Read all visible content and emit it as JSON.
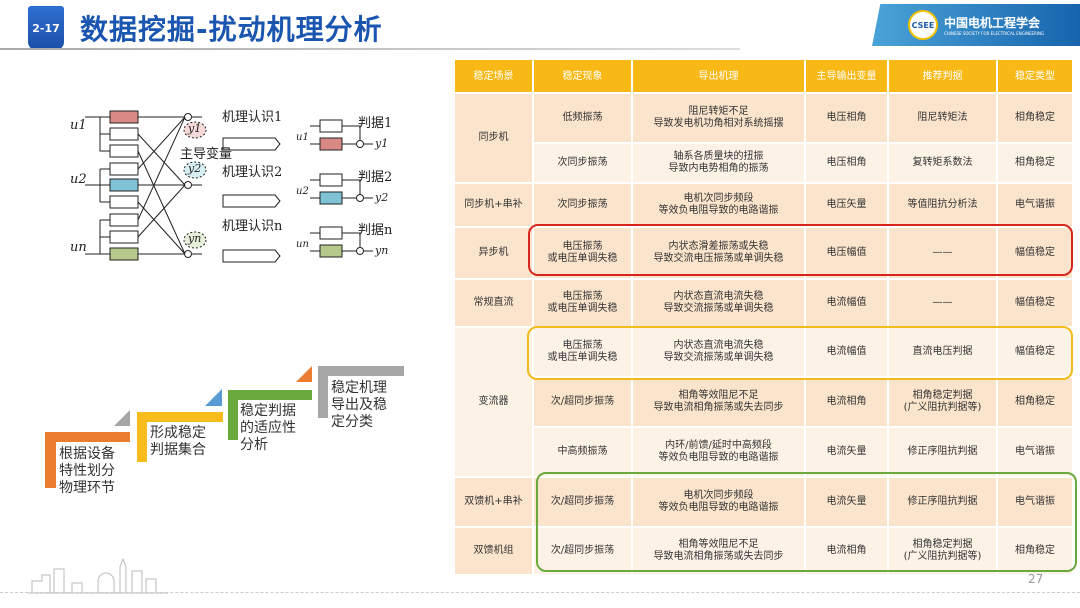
{
  "header": {
    "section": "2-17",
    "title": "数据挖掘-扰动机理分析",
    "org_name": "中国电机工程学会",
    "org_name_en": "CHINESE SOCIETY FOR ELECTRICAL ENGINEERING",
    "logo_text": "CSEE"
  },
  "diagram": {
    "inputs": [
      "u1",
      "u2",
      "un"
    ],
    "outputs": [
      "y1",
      "y2",
      "yn"
    ],
    "dominant_label": "主导变量",
    "mechanisms": [
      "机理认识1",
      "机理认识2",
      "机理认识n"
    ],
    "criteria": [
      "判据1",
      "判据2",
      "判据n"
    ],
    "colors": {
      "red": "#d98a86",
      "blue": "#7fc3d6",
      "green": "#b5c98a"
    }
  },
  "steps": [
    {
      "text": "根据设备特性划分物理环节",
      "color": "#ec7c30"
    },
    {
      "text": "形成稳定判据集合",
      "color": "#f8bd1c"
    },
    {
      "text": "稳定判据的适应性分析",
      "color": "#6aaa3d"
    },
    {
      "text": "稳定机理导出及稳定分类",
      "color": "#a6a6a6"
    }
  ],
  "table": {
    "headers": [
      "稳定场景",
      "稳定现象",
      "导出机理",
      "主导输出变量",
      "推荐判据",
      "稳定类型"
    ],
    "rows": [
      {
        "scene": "同步机",
        "phen": "低频振荡",
        "mech": [
          "阻尼转矩不足",
          "导致发电机功角相对系统摇摆"
        ],
        "var": "电压相角",
        "crit": [
          "阻尼转矩法"
        ],
        "type": "相角稳定"
      },
      {
        "phen": "次同步振荡",
        "mech": [
          "轴系各质量块的扭振",
          "导致内电势相角的振荡"
        ],
        "var": "电压相角",
        "crit": [
          "复转矩系数法"
        ],
        "type": "相角稳定"
      },
      {
        "scene": "同步机+串补",
        "phen": "次同步振荡",
        "mech": [
          "电机次同步频段",
          "等效负电阻导致的电路谐振"
        ],
        "var": "电压矢量",
        "crit": [
          "等值阻抗分析法"
        ],
        "type": "电气谐振"
      },
      {
        "scene": "异步机",
        "phen": [
          "电压振荡",
          "或电压单调失稳"
        ],
        "mech": [
          "内状态滑差振荡或失稳",
          "导致交流电压振荡或单调失稳"
        ],
        "var": "电压幅值",
        "crit": [
          "——"
        ],
        "type": "幅值稳定"
      },
      {
        "scene": "常规直流",
        "phen": [
          "电压振荡",
          "或电压单调失稳"
        ],
        "mech": [
          "内状态直流电流失稳",
          "导致交流振荡或单调失稳"
        ],
        "var": "电流幅值",
        "crit": [
          "——"
        ],
        "type": "幅值稳定"
      },
      {
        "scene": "变流器",
        "phen": [
          "电压振荡",
          "或电压单调失稳"
        ],
        "mech": [
          "内状态直流电流失稳",
          "导致交流振荡或单调失稳"
        ],
        "var": "电流幅值",
        "crit": [
          "直流电压判据"
        ],
        "type": "幅值稳定"
      },
      {
        "phen": "次/超同步振荡",
        "mech": [
          "相角等效阻尼不足",
          "导致电流相角振荡或失去同步"
        ],
        "var": "电流相角",
        "crit": [
          "相角稳定判据",
          "(广义阻抗判据等)"
        ],
        "type": "相角稳定"
      },
      {
        "phen": "中高频振荡",
        "mech": [
          "内环/前馈/延时中高频段",
          "等效负电阻导致的电路谐振"
        ],
        "var": "电流矢量",
        "crit": [
          "修正序阻抗判据"
        ],
        "type": "电气谐振"
      },
      {
        "scene": "双馈机+串补",
        "phen": "次/超同步振荡",
        "mech": [
          "电机次同步频段",
          "等效负电阻导致的电路谐振"
        ],
        "var": "电流矢量",
        "crit": [
          "修正序阻抗判据"
        ],
        "type": "电气谐振"
      },
      {
        "scene": "双馈机组",
        "phen": "次/超同步振荡",
        "mech": [
          "相角等效阻尼不足",
          "导致电流相角振荡或失去同步"
        ],
        "var": "电流相角",
        "crit": [
          "相角稳定判据",
          "(广义阻抗判据等)"
        ],
        "type": "相角稳定"
      }
    ],
    "highlights": {
      "red": "#d9261c",
      "yellow": "#f2bb1e",
      "green": "#6aaa3d"
    }
  },
  "page_number": "27"
}
